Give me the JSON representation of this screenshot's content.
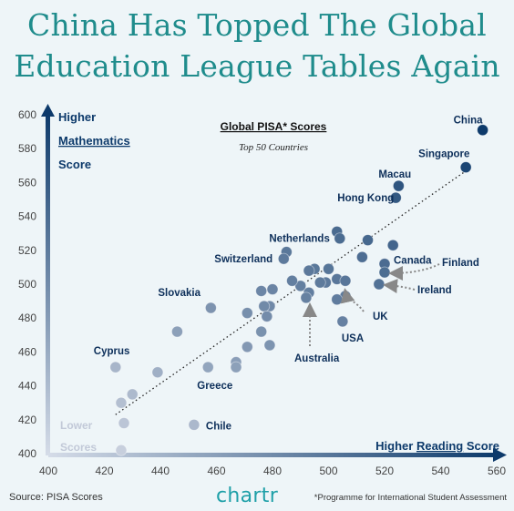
{
  "header": {
    "title_line1": "China Has Topped The Global",
    "title_line2": "Education League Tables Again"
  },
  "footer": {
    "source": "Source: PISA Scores",
    "brand": "chartr",
    "note": "*Programme for International Student Assessment"
  },
  "colors": {
    "title": "#1f8c8c",
    "background": "#eef5f8",
    "dot_dark": "#0d3a6b",
    "dot_light": "#c7cfdd",
    "label": "#0d2f5a",
    "brand": "#1fa0a8"
  },
  "chart_data": {
    "type": "scatter",
    "title": "Global PISA* Scores",
    "subtitle": "Top 50 Countries",
    "xlabel": "Higher Reading Score",
    "ylabel": "Higher Mathematics Score",
    "lower_label": "Lower Scores",
    "xlim": [
      400,
      560
    ],
    "ylim": [
      400,
      600
    ],
    "xticks": [
      400,
      420,
      440,
      460,
      480,
      500,
      520,
      540,
      560
    ],
    "yticks": [
      400,
      420,
      440,
      460,
      480,
      500,
      520,
      540,
      560,
      580,
      600
    ],
    "trendline": {
      "x": [
        424,
        550
      ],
      "y": [
        423,
        568
      ]
    },
    "points": [
      {
        "x": 555,
        "y": 591,
        "label": "China"
      },
      {
        "x": 549,
        "y": 569,
        "label": "Singapore"
      },
      {
        "x": 525,
        "y": 558,
        "label": "Macau"
      },
      {
        "x": 524,
        "y": 551,
        "label": "Hong Kong"
      },
      {
        "x": 503,
        "y": 531,
        "label": ""
      },
      {
        "x": 504,
        "y": 527,
        "label": ""
      },
      {
        "x": 514,
        "y": 526,
        "label": ""
      },
      {
        "x": 523,
        "y": 523,
        "label": ""
      },
      {
        "x": 485,
        "y": 519,
        "label": "Netherlands"
      },
      {
        "x": 484,
        "y": 515,
        "label": "Switzerland"
      },
      {
        "x": 512,
        "y": 516,
        "label": ""
      },
      {
        "x": 520,
        "y": 512,
        "label": "Canada"
      },
      {
        "x": 520,
        "y": 507,
        "label": "Finland"
      },
      {
        "x": 518,
        "y": 500,
        "label": "Ireland"
      },
      {
        "x": 500,
        "y": 509,
        "label": ""
      },
      {
        "x": 495,
        "y": 509,
        "label": ""
      },
      {
        "x": 493,
        "y": 508,
        "label": ""
      },
      {
        "x": 503,
        "y": 503,
        "label": ""
      },
      {
        "x": 506,
        "y": 502,
        "label": ""
      },
      {
        "x": 499,
        "y": 501,
        "label": ""
      },
      {
        "x": 497,
        "y": 501,
        "label": ""
      },
      {
        "x": 490,
        "y": 499,
        "label": ""
      },
      {
        "x": 487,
        "y": 502,
        "label": ""
      },
      {
        "x": 493,
        "y": 495,
        "label": ""
      },
      {
        "x": 492,
        "y": 492,
        "label": ""
      },
      {
        "x": 506,
        "y": 493,
        "label": ""
      },
      {
        "x": 503,
        "y": 491,
        "label": "Australia"
      },
      {
        "x": 505,
        "y": 478,
        "label": "USA"
      },
      {
        "x": 476,
        "y": 496,
        "label": ""
      },
      {
        "x": 480,
        "y": 497,
        "label": ""
      },
      {
        "x": 479,
        "y": 487,
        "label": ""
      },
      {
        "x": 477,
        "y": 487,
        "label": ""
      },
      {
        "x": 478,
        "y": 481,
        "label": ""
      },
      {
        "x": 476,
        "y": 472,
        "label": ""
      },
      {
        "x": 471,
        "y": 463,
        "label": ""
      },
      {
        "x": 479,
        "y": 464,
        "label": ""
      },
      {
        "x": 471,
        "y": 483,
        "label": ""
      },
      {
        "x": 458,
        "y": 486,
        "label": "Slovakia"
      },
      {
        "x": 446,
        "y": 472,
        "label": ""
      },
      {
        "x": 467,
        "y": 454,
        "label": ""
      },
      {
        "x": 467,
        "y": 451,
        "label": ""
      },
      {
        "x": 457,
        "y": 451,
        "label": "Greece"
      },
      {
        "x": 439,
        "y": 448,
        "label": ""
      },
      {
        "x": 424,
        "y": 451,
        "label": "Cyprus"
      },
      {
        "x": 430,
        "y": 435,
        "label": ""
      },
      {
        "x": 426,
        "y": 430,
        "label": ""
      },
      {
        "x": 427,
        "y": 418,
        "label": ""
      },
      {
        "x": 452,
        "y": 417,
        "label": "Chile"
      },
      {
        "x": 426,
        "y": 402,
        "label": ""
      }
    ],
    "annotations": [
      {
        "text": "UK",
        "arrow_to": {
          "x": 507,
          "y": 496
        }
      },
      {
        "text": "Australia",
        "arrow_to": {
          "x": 503,
          "y": 491
        }
      },
      {
        "text": "Finland",
        "arrow_to": {
          "x": 520,
          "y": 507
        }
      },
      {
        "text": "Ireland",
        "arrow_to": {
          "x": 518,
          "y": 500
        }
      }
    ]
  }
}
